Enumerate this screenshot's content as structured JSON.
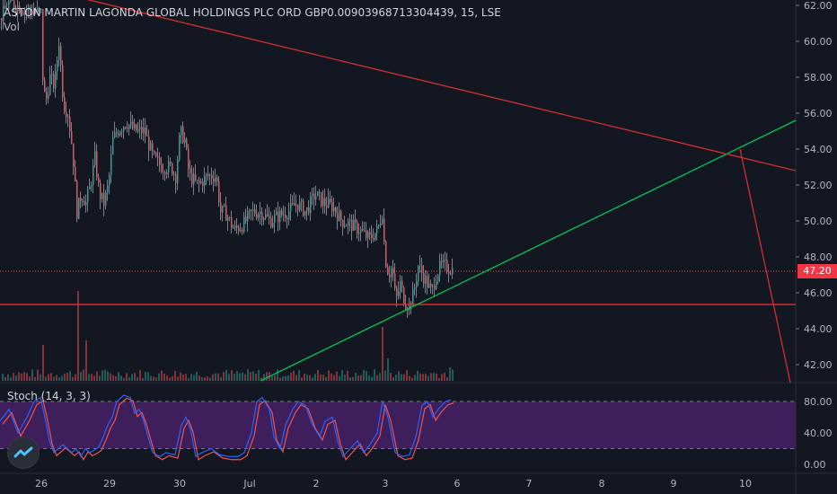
{
  "header": {
    "symbol_line": "ASTON MARTIN LAGONDA GLOBAL HOLDINGS PLC ORD GBP0.00903968713304439, 15, LSE",
    "vol_label": "Vol"
  },
  "stoch": {
    "label": "Stoch (14, 3, 3)"
  },
  "price_axis": {
    "ticks": [
      "62.00",
      "60.00",
      "58.00",
      "56.00",
      "54.00",
      "52.00",
      "50.00",
      "48.00",
      "46.00",
      "44.00",
      "42.00"
    ]
  },
  "stoch_axis": {
    "ticks": [
      "80.00",
      "40.00",
      "0.00"
    ]
  },
  "time_axis": {
    "ticks": [
      "26",
      "29",
      "30",
      "Jul",
      "2",
      "3",
      "6",
      "7",
      "8",
      "9",
      "10"
    ]
  },
  "current_price": "47.20",
  "colors": {
    "background": "#131722",
    "up": "#26a69a",
    "down": "#ef5350",
    "trend_up": "#00c853",
    "trend_down": "#d32f2f",
    "stoch_band": "#3e1f5c",
    "k_line": "#2962ff",
    "d_line": "#ef5350",
    "price_tag": "#f23645"
  },
  "chart_data": {
    "type": "candlestick",
    "title": "ASTON MARTIN LAGONDA GLOBAL HOLDINGS PLC ORD GBP0.00903968713304439, 15, LSE",
    "x": [
      "26",
      "29",
      "30",
      "Jul",
      "2",
      "3",
      "6",
      "7",
      "8",
      "9",
      "10"
    ],
    "ylim": [
      41,
      62.2
    ],
    "path_points": [
      [
        0,
        61.3
      ],
      [
        10,
        62.2
      ],
      [
        25,
        61.8
      ],
      [
        45,
        61.6
      ],
      [
        47,
        58.0
      ],
      [
        50,
        56.5
      ],
      [
        55,
        58.0
      ],
      [
        60,
        57.5
      ],
      [
        65,
        60.0
      ],
      [
        70,
        56.5
      ],
      [
        75,
        56.0
      ],
      [
        80,
        54.0
      ],
      [
        85,
        50.5
      ],
      [
        90,
        51.5
      ],
      [
        95,
        51.0
      ],
      [
        100,
        52.0
      ],
      [
        105,
        53.5
      ],
      [
        110,
        51.5
      ],
      [
        115,
        51.0
      ],
      [
        120,
        52.0
      ],
      [
        125,
        54.5
      ],
      [
        130,
        55.0
      ],
      [
        140,
        55.5
      ],
      [
        150,
        55.0
      ],
      [
        160,
        55.0
      ],
      [
        170,
        53.5
      ],
      [
        180,
        53.0
      ],
      [
        190,
        53.0
      ],
      [
        195,
        52.5
      ],
      [
        200,
        55.0
      ],
      [
        205,
        54.5
      ],
      [
        210,
        52.5
      ],
      [
        220,
        52.0
      ],
      [
        230,
        52.5
      ],
      [
        240,
        52.5
      ],
      [
        245,
        50.5
      ],
      [
        250,
        50.5
      ],
      [
        260,
        49.5
      ],
      [
        270,
        49.8
      ],
      [
        280,
        50.5
      ],
      [
        290,
        50.5
      ],
      [
        300,
        50.0
      ],
      [
        310,
        50.3
      ],
      [
        320,
        50.5
      ],
      [
        330,
        51.0
      ],
      [
        340,
        50.5
      ],
      [
        350,
        51.5
      ],
      [
        360,
        51.0
      ],
      [
        370,
        50.8
      ],
      [
        380,
        50.0
      ],
      [
        390,
        49.8
      ],
      [
        400,
        49.5
      ],
      [
        410,
        49.0
      ],
      [
        420,
        49.5
      ],
      [
        425,
        50.5
      ],
      [
        428,
        48.0
      ],
      [
        432,
        47.0
      ],
      [
        436,
        47.5
      ],
      [
        440,
        45.5
      ],
      [
        445,
        46.5
      ],
      [
        450,
        45.5
      ],
      [
        455,
        45.3
      ],
      [
        460,
        46.0
      ],
      [
        465,
        47.5
      ],
      [
        470,
        47.0
      ],
      [
        475,
        46.5
      ],
      [
        480,
        46.0
      ],
      [
        485,
        47.0
      ],
      [
        490,
        47.5
      ],
      [
        495,
        47.5
      ],
      [
        502,
        47.3
      ]
    ],
    "volume_spikes": [
      [
        48,
        4.0
      ],
      [
        86,
        10.0
      ],
      [
        94,
        4.5
      ],
      [
        426,
        6.0
      ],
      [
        432,
        2.5
      ],
      [
        500,
        1.5
      ]
    ],
    "horizontal_line": 45.35,
    "current_price_line": 47.2,
    "trend_lines": [
      {
        "from": [
          290,
          41.1
        ],
        "to": [
          886,
          55.6
        ],
        "color": "trend_up"
      },
      {
        "from": [
          0,
          63.5
        ],
        "to": [
          886,
          52.8
        ],
        "color": "trend_down"
      },
      {
        "from": [
          824,
          54.0
        ],
        "to": [
          880,
          41.0
        ],
        "color": "trend_down"
      }
    ],
    "stochastic": {
      "levels": [
        80,
        20
      ],
      "k": [
        [
          0,
          55
        ],
        [
          10,
          70
        ],
        [
          20,
          40
        ],
        [
          30,
          60
        ],
        [
          38,
          80
        ],
        [
          45,
          85
        ],
        [
          50,
          60
        ],
        [
          55,
          30
        ],
        [
          60,
          15
        ],
        [
          65,
          20
        ],
        [
          70,
          25
        ],
        [
          75,
          20
        ],
        [
          80,
          15
        ],
        [
          85,
          20
        ],
        [
          90,
          10
        ],
        [
          95,
          20
        ],
        [
          100,
          15
        ],
        [
          105,
          18
        ],
        [
          110,
          22
        ],
        [
          115,
          35
        ],
        [
          120,
          50
        ],
        [
          125,
          60
        ],
        [
          130,
          80
        ],
        [
          138,
          88
        ],
        [
          145,
          85
        ],
        [
          150,
          65
        ],
        [
          155,
          70
        ],
        [
          160,
          55
        ],
        [
          165,
          35
        ],
        [
          170,
          15
        ],
        [
          178,
          10
        ],
        [
          185,
          15
        ],
        [
          195,
          12
        ],
        [
          202,
          50
        ],
        [
          207,
          60
        ],
        [
          212,
          45
        ],
        [
          218,
          10
        ],
        [
          225,
          15
        ],
        [
          235,
          20
        ],
        [
          245,
          12
        ],
        [
          255,
          10
        ],
        [
          265,
          10
        ],
        [
          272,
          15
        ],
        [
          280,
          40
        ],
        [
          286,
          80
        ],
        [
          292,
          85
        ],
        [
          300,
          70
        ],
        [
          305,
          35
        ],
        [
          312,
          20
        ],
        [
          318,
          50
        ],
        [
          326,
          70
        ],
        [
          332,
          80
        ],
        [
          340,
          75
        ],
        [
          348,
          50
        ],
        [
          356,
          35
        ],
        [
          362,
          55
        ],
        [
          370,
          60
        ],
        [
          376,
          30
        ],
        [
          382,
          10
        ],
        [
          390,
          20
        ],
        [
          398,
          30
        ],
        [
          405,
          15
        ],
        [
          412,
          25
        ],
        [
          420,
          40
        ],
        [
          426,
          80
        ],
        [
          432,
          60
        ],
        [
          440,
          15
        ],
        [
          448,
          10
        ],
        [
          456,
          12
        ],
        [
          463,
          35
        ],
        [
          470,
          75
        ],
        [
          476,
          80
        ],
        [
          482,
          60
        ],
        [
          488,
          70
        ],
        [
          496,
          80
        ],
        [
          502,
          82
        ]
      ]
    }
  }
}
